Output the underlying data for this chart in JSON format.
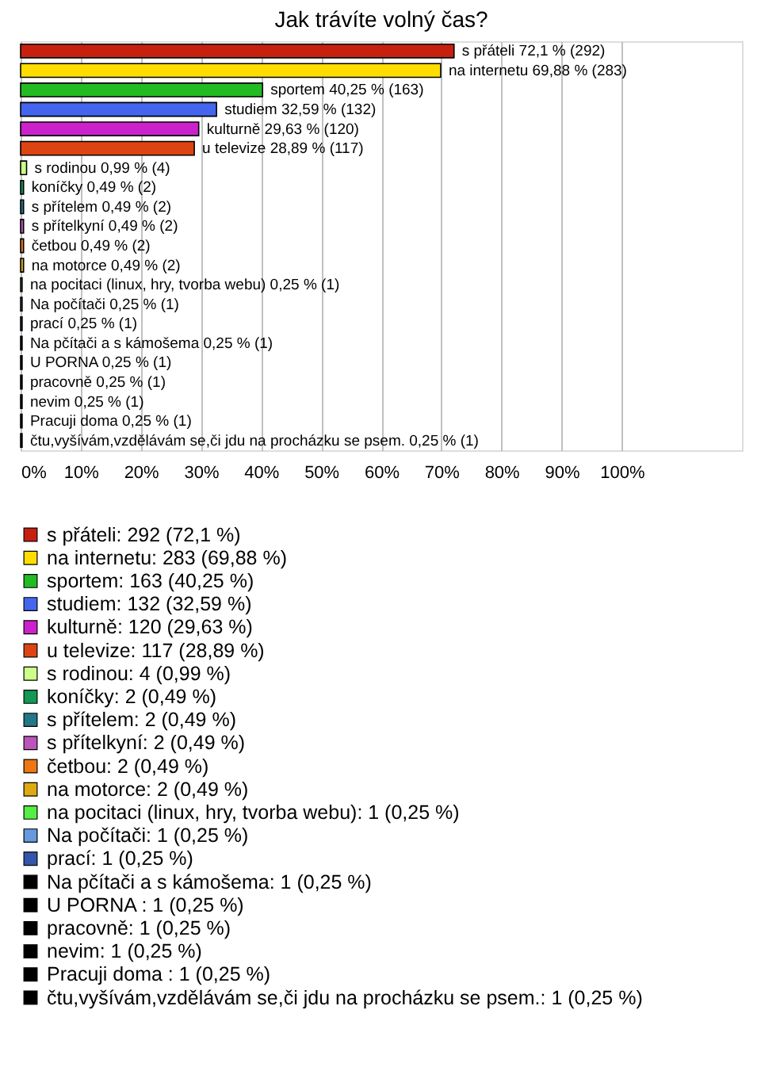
{
  "chart_data": {
    "type": "bar",
    "orientation": "horizontal",
    "title": "Jak trávíte volný čas?",
    "categories": [
      null,
      null,
      null,
      null,
      null,
      null,
      null,
      null,
      null,
      null,
      null,
      null,
      null,
      null,
      null,
      null,
      null,
      null,
      null,
      null,
      null
    ],
    "xlim": [
      0,
      120
    ],
    "xticks": [
      {
        "value": 0,
        "label": "0%"
      },
      {
        "value": 10,
        "label": "10%"
      },
      {
        "value": 20,
        "label": "20%"
      },
      {
        "value": 30,
        "label": "30%"
      },
      {
        "value": 40,
        "label": "40%"
      },
      {
        "value": 50,
        "label": "50%"
      },
      {
        "value": 60,
        "label": "60%"
      },
      {
        "value": 70,
        "label": "70%"
      },
      {
        "value": 80,
        "label": "80%"
      },
      {
        "value": 90,
        "label": "90%"
      },
      {
        "value": 100,
        "label": "100%"
      }
    ],
    "grid": "x",
    "legend": "bottom",
    "tick_labels": "x",
    "series": [
      {
        "name": "s přáteli: 292 (72,1 %)",
        "color": "#c8200f",
        "values": [
          72.1,
          null,
          null,
          null,
          null,
          null,
          null,
          null,
          null,
          null,
          null,
          null,
          null,
          null,
          null,
          null,
          null,
          null,
          null,
          null,
          null
        ],
        "value_labels": [
          "s přáteli 72,1 % (292)",
          null,
          null,
          null,
          null,
          null,
          null,
          null,
          null,
          null,
          null,
          null,
          null,
          null,
          null,
          null,
          null,
          null,
          null,
          null,
          null
        ]
      },
      {
        "name": "na internetu: 283 (69,88 %)",
        "color": "#ffdd00",
        "values": [
          null,
          69.88,
          null,
          null,
          null,
          null,
          null,
          null,
          null,
          null,
          null,
          null,
          null,
          null,
          null,
          null,
          null,
          null,
          null,
          null,
          null
        ],
        "value_labels": [
          null,
          "na internetu 69,88 % (283)",
          null,
          null,
          null,
          null,
          null,
          null,
          null,
          null,
          null,
          null,
          null,
          null,
          null,
          null,
          null,
          null,
          null,
          null,
          null
        ]
      },
      {
        "name": "sportem: 163 (40,25 %)",
        "color": "#22bb22",
        "values": [
          null,
          null,
          40.25,
          null,
          null,
          null,
          null,
          null,
          null,
          null,
          null,
          null,
          null,
          null,
          null,
          null,
          null,
          null,
          null,
          null,
          null
        ],
        "value_labels": [
          null,
          null,
          "sportem 40,25 % (163)",
          null,
          null,
          null,
          null,
          null,
          null,
          null,
          null,
          null,
          null,
          null,
          null,
          null,
          null,
          null,
          null,
          null,
          null
        ]
      },
      {
        "name": "studiem: 132 (32,59 %)",
        "color": "#4466ee",
        "values": [
          null,
          null,
          null,
          32.59,
          null,
          null,
          null,
          null,
          null,
          null,
          null,
          null,
          null,
          null,
          null,
          null,
          null,
          null,
          null,
          null,
          null
        ],
        "value_labels": [
          null,
          null,
          null,
          "studiem 32,59 % (132)",
          null,
          null,
          null,
          null,
          null,
          null,
          null,
          null,
          null,
          null,
          null,
          null,
          null,
          null,
          null,
          null,
          null
        ]
      },
      {
        "name": "kulturně: 120 (29,63 %)",
        "color": "#cc22cc",
        "values": [
          null,
          null,
          null,
          null,
          29.63,
          null,
          null,
          null,
          null,
          null,
          null,
          null,
          null,
          null,
          null,
          null,
          null,
          null,
          null,
          null,
          null
        ],
        "value_labels": [
          null,
          null,
          null,
          null,
          "kulturně 29,63 % (120)",
          null,
          null,
          null,
          null,
          null,
          null,
          null,
          null,
          null,
          null,
          null,
          null,
          null,
          null,
          null,
          null
        ]
      },
      {
        "name": "u televize: 117 (28,89 %)",
        "color": "#dd4411",
        "values": [
          null,
          null,
          null,
          null,
          null,
          28.89,
          null,
          null,
          null,
          null,
          null,
          null,
          null,
          null,
          null,
          null,
          null,
          null,
          null,
          null,
          null
        ],
        "value_labels": [
          null,
          null,
          null,
          null,
          null,
          "u televize 28,89 % (117)",
          null,
          null,
          null,
          null,
          null,
          null,
          null,
          null,
          null,
          null,
          null,
          null,
          null,
          null,
          null
        ]
      },
      {
        "name": "s rodinou: 4 (0,99 %)",
        "color": "#ccff88",
        "values": [
          null,
          null,
          null,
          null,
          null,
          null,
          0.99,
          null,
          null,
          null,
          null,
          null,
          null,
          null,
          null,
          null,
          null,
          null,
          null,
          null,
          null
        ],
        "value_labels": [
          null,
          null,
          null,
          null,
          null,
          null,
          "s rodinou 0,99 % (4)",
          null,
          null,
          null,
          null,
          null,
          null,
          null,
          null,
          null,
          null,
          null,
          null,
          null,
          null
        ]
      },
      {
        "name": "koníčky: 2 (0,49 %)",
        "color": "#119955",
        "values": [
          null,
          null,
          null,
          null,
          null,
          null,
          null,
          0.49,
          null,
          null,
          null,
          null,
          null,
          null,
          null,
          null,
          null,
          null,
          null,
          null,
          null
        ],
        "value_labels": [
          null,
          null,
          null,
          null,
          null,
          null,
          null,
          "koníčky 0,49 % (2)",
          null,
          null,
          null,
          null,
          null,
          null,
          null,
          null,
          null,
          null,
          null,
          null,
          null
        ]
      },
      {
        "name": "s přítelem: 2 (0,49 %)",
        "color": "#227788",
        "values": [
          null,
          null,
          null,
          null,
          null,
          null,
          null,
          null,
          0.49,
          null,
          null,
          null,
          null,
          null,
          null,
          null,
          null,
          null,
          null,
          null,
          null
        ],
        "value_labels": [
          null,
          null,
          null,
          null,
          null,
          null,
          null,
          null,
          "s přítelem 0,49 % (2)",
          null,
          null,
          null,
          null,
          null,
          null,
          null,
          null,
          null,
          null,
          null,
          null
        ]
      },
      {
        "name": "s přítelkyní: 2 (0,49 %)",
        "color": "#bb55bb",
        "values": [
          null,
          null,
          null,
          null,
          null,
          null,
          null,
          null,
          null,
          0.49,
          null,
          null,
          null,
          null,
          null,
          null,
          null,
          null,
          null,
          null,
          null
        ],
        "value_labels": [
          null,
          null,
          null,
          null,
          null,
          null,
          null,
          null,
          null,
          "s přítelkyní 0,49 % (2)",
          null,
          null,
          null,
          null,
          null,
          null,
          null,
          null,
          null,
          null,
          null
        ]
      },
      {
        "name": "četbou: 2 (0,49 %)",
        "color": "#ee7711",
        "values": [
          null,
          null,
          null,
          null,
          null,
          null,
          null,
          null,
          null,
          null,
          0.49,
          null,
          null,
          null,
          null,
          null,
          null,
          null,
          null,
          null,
          null
        ],
        "value_labels": [
          null,
          null,
          null,
          null,
          null,
          null,
          null,
          null,
          null,
          null,
          "četbou 0,49 % (2)",
          null,
          null,
          null,
          null,
          null,
          null,
          null,
          null,
          null,
          null
        ]
      },
      {
        "name": "na motorce: 2 (0,49 %)",
        "color": "#ddaa11",
        "values": [
          null,
          null,
          null,
          null,
          null,
          null,
          null,
          null,
          null,
          null,
          null,
          0.49,
          null,
          null,
          null,
          null,
          null,
          null,
          null,
          null,
          null
        ],
        "value_labels": [
          null,
          null,
          null,
          null,
          null,
          null,
          null,
          null,
          null,
          null,
          null,
          "na motorce 0,49 % (2)",
          null,
          null,
          null,
          null,
          null,
          null,
          null,
          null,
          null
        ]
      },
      {
        "name": "na pocitaci (linux, hry, tvorba webu): 1 (0,25 %)",
        "color": "#55ee44",
        "values": [
          null,
          null,
          null,
          null,
          null,
          null,
          null,
          null,
          null,
          null,
          null,
          null,
          0.25,
          null,
          null,
          null,
          null,
          null,
          null,
          null,
          null
        ],
        "value_labels": [
          null,
          null,
          null,
          null,
          null,
          null,
          null,
          null,
          null,
          null,
          null,
          null,
          "na pocitaci (linux, hry, tvorba webu) 0,25 % (1)",
          null,
          null,
          null,
          null,
          null,
          null,
          null,
          null
        ]
      },
      {
        "name": "Na počítači: 1 (0,25 %)",
        "color": "#6699dd",
        "values": [
          null,
          null,
          null,
          null,
          null,
          null,
          null,
          null,
          null,
          null,
          null,
          null,
          null,
          0.25,
          null,
          null,
          null,
          null,
          null,
          null,
          null
        ],
        "value_labels": [
          null,
          null,
          null,
          null,
          null,
          null,
          null,
          null,
          null,
          null,
          null,
          null,
          null,
          "Na počítači 0,25 % (1)",
          null,
          null,
          null,
          null,
          null,
          null,
          null
        ]
      },
      {
        "name": "prací: 1 (0,25 %)",
        "color": "#3355aa",
        "values": [
          null,
          null,
          null,
          null,
          null,
          null,
          null,
          null,
          null,
          null,
          null,
          null,
          null,
          null,
          0.25,
          null,
          null,
          null,
          null,
          null,
          null
        ],
        "value_labels": [
          null,
          null,
          null,
          null,
          null,
          null,
          null,
          null,
          null,
          null,
          null,
          null,
          null,
          null,
          "prací 0,25 % (1)",
          null,
          null,
          null,
          null,
          null,
          null
        ]
      },
      {
        "name": "Na pčítači a s kámošema: 1 (0,25 %)",
        "color": "#000000",
        "values": [
          null,
          null,
          null,
          null,
          null,
          null,
          null,
          null,
          null,
          null,
          null,
          null,
          null,
          null,
          null,
          0.25,
          null,
          null,
          null,
          null,
          null
        ],
        "value_labels": [
          null,
          null,
          null,
          null,
          null,
          null,
          null,
          null,
          null,
          null,
          null,
          null,
          null,
          null,
          null,
          "Na pčítači a s kámošema 0,25 % (1)",
          null,
          null,
          null,
          null,
          null
        ]
      },
      {
        "name": "U PORNA : 1 (0,25 %)",
        "color": "#000000",
        "values": [
          null,
          null,
          null,
          null,
          null,
          null,
          null,
          null,
          null,
          null,
          null,
          null,
          null,
          null,
          null,
          null,
          0.25,
          null,
          null,
          null,
          null
        ],
        "value_labels": [
          null,
          null,
          null,
          null,
          null,
          null,
          null,
          null,
          null,
          null,
          null,
          null,
          null,
          null,
          null,
          null,
          "U PORNA 0,25 % (1)",
          null,
          null,
          null,
          null
        ]
      },
      {
        "name": "pracovně: 1 (0,25 %)",
        "color": "#000000",
        "values": [
          null,
          null,
          null,
          null,
          null,
          null,
          null,
          null,
          null,
          null,
          null,
          null,
          null,
          null,
          null,
          null,
          null,
          0.25,
          null,
          null,
          null
        ],
        "value_labels": [
          null,
          null,
          null,
          null,
          null,
          null,
          null,
          null,
          null,
          null,
          null,
          null,
          null,
          null,
          null,
          null,
          null,
          "pracovně 0,25 % (1)",
          null,
          null,
          null
        ]
      },
      {
        "name": "nevim: 1 (0,25 %)",
        "color": "#000000",
        "values": [
          null,
          null,
          null,
          null,
          null,
          null,
          null,
          null,
          null,
          null,
          null,
          null,
          null,
          null,
          null,
          null,
          null,
          null,
          0.25,
          null,
          null
        ],
        "value_labels": [
          null,
          null,
          null,
          null,
          null,
          null,
          null,
          null,
          null,
          null,
          null,
          null,
          null,
          null,
          null,
          null,
          null,
          null,
          "nevim 0,25 % (1)",
          null,
          null
        ]
      },
      {
        "name": "Pracuji doma : 1 (0,25 %)",
        "color": "#000000",
        "values": [
          null,
          null,
          null,
          null,
          null,
          null,
          null,
          null,
          null,
          null,
          null,
          null,
          null,
          null,
          null,
          null,
          null,
          null,
          null,
          0.25,
          null
        ],
        "value_labels": [
          null,
          null,
          null,
          null,
          null,
          null,
          null,
          null,
          null,
          null,
          null,
          null,
          null,
          null,
          null,
          null,
          null,
          null,
          null,
          "Pracuji doma  0,25 % (1)",
          null
        ]
      },
      {
        "name": "čtu,vyšívám,vzdělávám se,či jdu na procházku se psem.: 1 (0,25 %)",
        "color": "#000000",
        "values": [
          null,
          null,
          null,
          null,
          null,
          null,
          null,
          null,
          null,
          null,
          null,
          null,
          null,
          null,
          null,
          null,
          null,
          null,
          null,
          null,
          0.25
        ],
        "value_labels": [
          null,
          null,
          null,
          null,
          null,
          null,
          null,
          null,
          null,
          null,
          null,
          null,
          null,
          null,
          null,
          null,
          null,
          null,
          null,
          null,
          "čtu,vyšívám,vzdělávám se,či jdu na procházku se psem. 0,25 % (1)"
        ]
      }
    ]
  }
}
